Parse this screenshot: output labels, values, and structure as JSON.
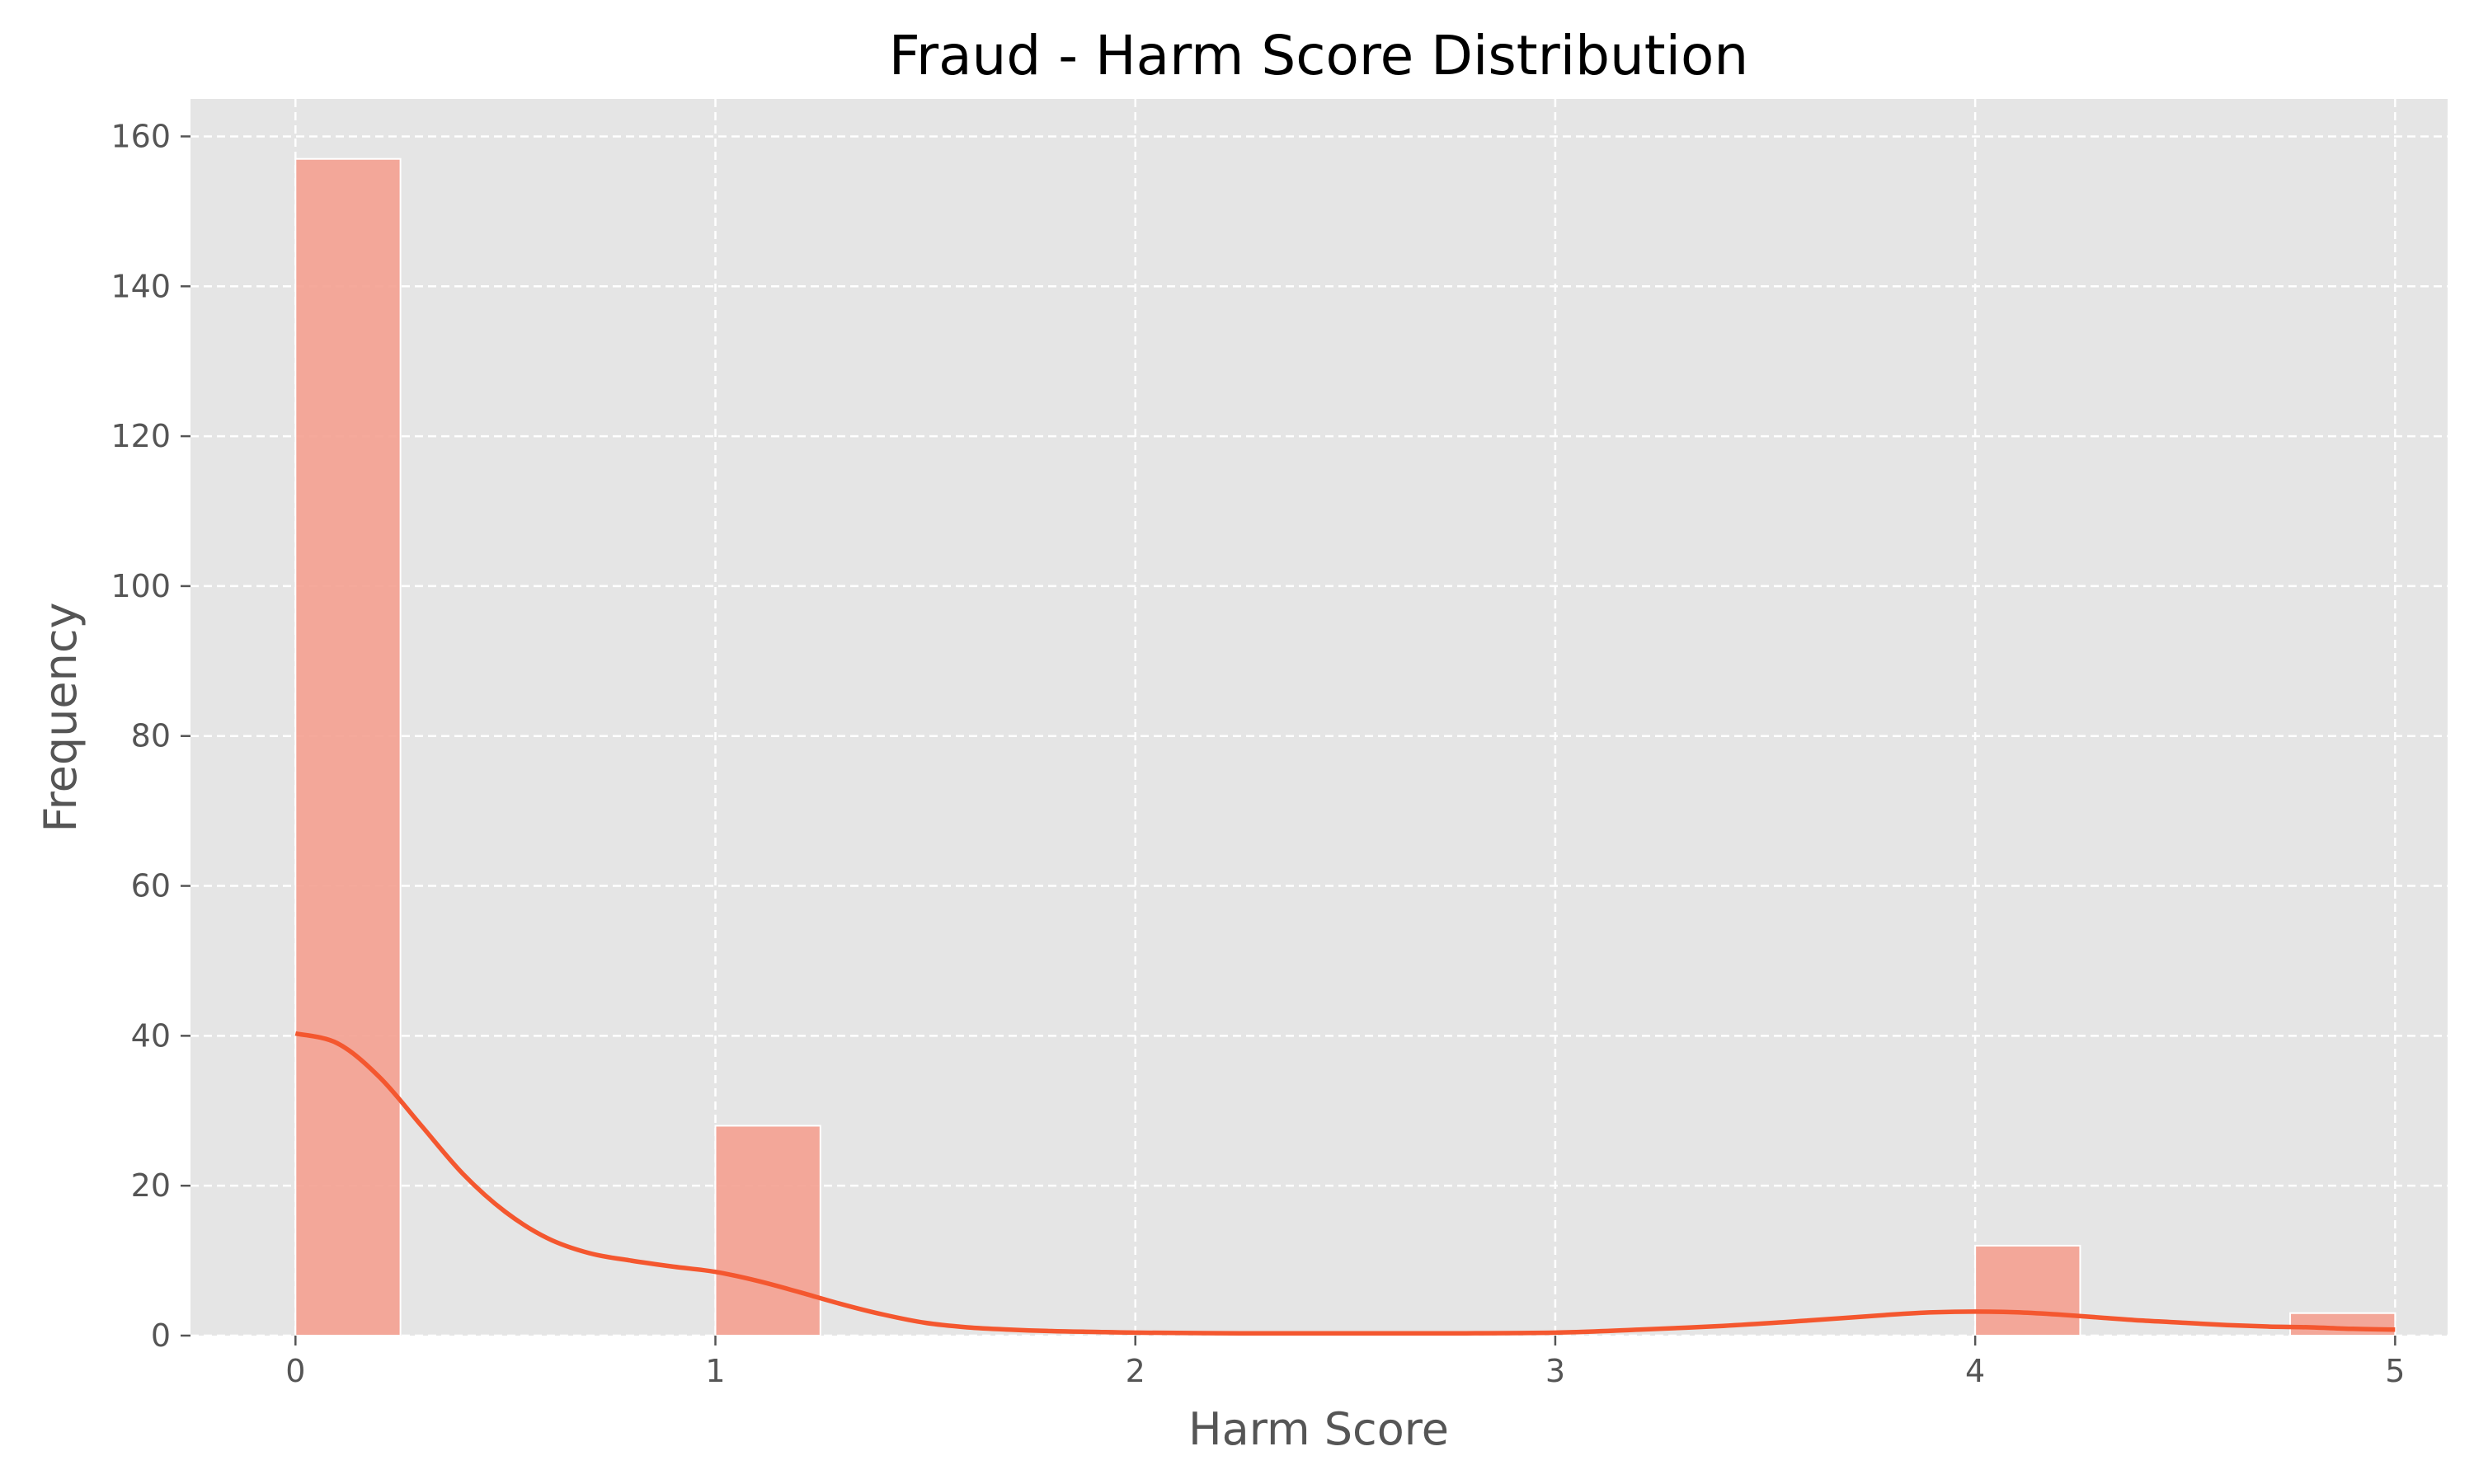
{
  "chart_data": {
    "type": "bar",
    "title": "Fraud - Harm Score Distribution",
    "xlabel": "Harm Score",
    "ylabel": "Frequency",
    "xlim": [
      -0.25,
      5.125
    ],
    "ylim": [
      0,
      165
    ],
    "x_ticks": [
      "0",
      "1",
      "2",
      "3",
      "4",
      "5"
    ],
    "y_ticks": [
      "0",
      "20",
      "40",
      "60",
      "80",
      "100",
      "120",
      "140",
      "160"
    ],
    "grid": true,
    "bins": [
      {
        "x0": 0.0,
        "x1": 0.25,
        "value": 157
      },
      {
        "x0": 1.0,
        "x1": 1.25,
        "value": 28
      },
      {
        "x0": 4.0,
        "x1": 4.25,
        "value": 12
      },
      {
        "x0": 4.75,
        "x1": 5.0,
        "value": 3
      }
    ],
    "kde": {
      "x": [
        0.0,
        0.1,
        0.2,
        0.3,
        0.4,
        0.5,
        0.6,
        0.7,
        0.8,
        0.9,
        1.0,
        1.1,
        1.2,
        1.3,
        1.4,
        1.5,
        1.6,
        1.7,
        1.8,
        1.9,
        2.0,
        2.25,
        2.5,
        2.75,
        3.0,
        3.2,
        3.4,
        3.6,
        3.8,
        3.9,
        4.0,
        4.1,
        4.2,
        4.3,
        4.4,
        4.5,
        4.6,
        4.7,
        4.8,
        4.9,
        5.0
      ],
      "y": [
        40.3,
        39.0,
        34.5,
        28.0,
        21.5,
        16.5,
        13.0,
        11.0,
        10.0,
        9.2,
        8.5,
        7.3,
        5.8,
        4.2,
        2.8,
        1.7,
        1.1,
        0.8,
        0.6,
        0.5,
        0.4,
        0.3,
        0.3,
        0.3,
        0.4,
        0.8,
        1.3,
        2.0,
        2.8,
        3.1,
        3.2,
        3.1,
        2.8,
        2.4,
        2.0,
        1.7,
        1.4,
        1.2,
        1.1,
        0.9,
        0.8
      ]
    },
    "colors": {
      "bar": "#f4a090",
      "kde": "#f4572f",
      "plot_background": "#e5e5e5"
    }
  }
}
